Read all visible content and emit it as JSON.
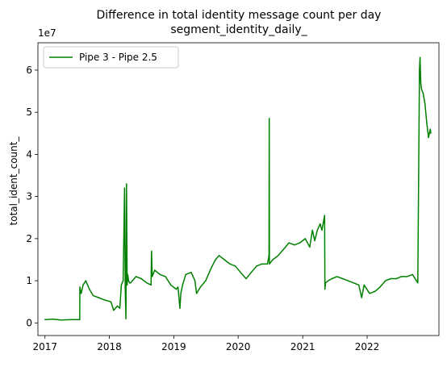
{
  "chart_data": {
    "type": "line",
    "title": "Difference in total identity message count per day",
    "subtitle": "segment_identity_daily_",
    "xlabel": "",
    "ylabel": "total_ident_count_",
    "y_offset_label": "1e7",
    "xlim": [
      "2016-11-22",
      "2023-02-12"
    ],
    "ylim": [
      -3000000,
      66500000
    ],
    "x_ticks": [
      {
        "date": "2017-01-01",
        "label": "2017"
      },
      {
        "date": "2018-01-01",
        "label": "2018"
      },
      {
        "date": "2019-01-01",
        "label": "2019"
      },
      {
        "date": "2020-01-01",
        "label": "2020"
      },
      {
        "date": "2021-01-01",
        "label": "2021"
      },
      {
        "date": "2022-01-01",
        "label": "2022"
      }
    ],
    "y_ticks": [
      {
        "value": 0,
        "label": "0"
      },
      {
        "value": 10000000,
        "label": "1"
      },
      {
        "value": 20000000,
        "label": "2"
      },
      {
        "value": 30000000,
        "label": "3"
      },
      {
        "value": 40000000,
        "label": "4"
      },
      {
        "value": 50000000,
        "label": "5"
      },
      {
        "value": 60000000,
        "label": "6"
      }
    ],
    "grid": false,
    "legend_position": "top-left",
    "series": [
      {
        "name": "Pipe 3 - Pipe 2.5",
        "color": "#008000",
        "x": [
          "2017-01-01",
          "2017-02-15",
          "2017-04-01",
          "2017-06-01",
          "2017-07-17",
          "2017-07-18",
          "2017-07-25",
          "2017-08-05",
          "2017-08-20",
          "2017-09-10",
          "2017-10-01",
          "2017-11-01",
          "2017-12-01",
          "2018-01-10",
          "2018-01-25",
          "2018-02-15",
          "2018-03-01",
          "2018-03-10",
          "2018-03-20",
          "2018-03-28",
          "2018-04-01",
          "2018-04-05",
          "2018-04-08",
          "2018-04-12",
          "2018-04-15",
          "2018-04-20",
          "2018-04-25",
          "2018-05-01",
          "2018-06-01",
          "2018-07-01",
          "2018-08-01",
          "2018-08-25",
          "2018-08-28",
          "2018-09-01",
          "2018-09-15",
          "2018-10-15",
          "2018-11-15",
          "2018-12-15",
          "2019-01-15",
          "2019-01-25",
          "2019-02-05",
          "2019-02-10",
          "2019-02-20",
          "2019-03-10",
          "2019-04-10",
          "2019-05-01",
          "2019-05-10",
          "2019-06-01",
          "2019-07-01",
          "2019-08-01",
          "2019-08-25",
          "2019-09-15",
          "2019-10-15",
          "2019-11-15",
          "2019-12-15",
          "2020-01-15",
          "2020-02-15",
          "2020-03-15",
          "2020-04-15",
          "2020-05-15",
          "2020-06-15",
          "2020-06-24",
          "2020-06-25",
          "2020-06-26",
          "2020-07-15",
          "2020-08-15",
          "2020-09-15",
          "2020-10-15",
          "2020-11-15",
          "2020-12-15",
          "2021-01-15",
          "2021-02-10",
          "2021-02-25",
          "2021-03-10",
          "2021-03-25",
          "2021-04-10",
          "2021-04-20",
          "2021-05-05",
          "2021-05-07",
          "2021-05-10",
          "2021-05-25",
          "2021-06-15",
          "2021-07-15",
          "2021-08-15",
          "2021-09-15",
          "2021-10-15",
          "2021-11-15",
          "2021-12-01",
          "2021-12-15",
          "2022-01-15",
          "2022-02-15",
          "2022-03-15",
          "2022-04-15",
          "2022-05-15",
          "2022-06-15",
          "2022-07-15",
          "2022-08-15",
          "2022-09-15",
          "2022-10-15",
          "2022-10-25",
          "2022-10-28",
          "2022-11-01",
          "2022-11-05",
          "2022-11-15",
          "2022-11-25",
          "2022-12-05",
          "2022-12-15",
          "2022-12-25",
          "2022-12-28"
        ],
        "values": [
          800000,
          900000,
          700000,
          800000,
          800000,
          8500000,
          7000000,
          9000000,
          10000000,
          8000000,
          6500000,
          6000000,
          5500000,
          5000000,
          3000000,
          4000000,
          3500000,
          9000000,
          10000000,
          32000000,
          8000000,
          1000000,
          33000000,
          9000000,
          11500000,
          10000000,
          9500000,
          9500000,
          11000000,
          10500000,
          9500000,
          9000000,
          17000000,
          11000000,
          12500000,
          11500000,
          11000000,
          9000000,
          8000000,
          8500000,
          3500000,
          7000000,
          9000000,
          11500000,
          12000000,
          10000000,
          7000000,
          8500000,
          10000000,
          13000000,
          15000000,
          16000000,
          15000000,
          14000000,
          13500000,
          12000000,
          10500000,
          12000000,
          13500000,
          14000000,
          14000000,
          16000000,
          48500000,
          14000000,
          15000000,
          16000000,
          17500000,
          19000000,
          18500000,
          19000000,
          20000000,
          18000000,
          22000000,
          19500000,
          22000000,
          23500000,
          22000000,
          25500000,
          8000000,
          9500000,
          10000000,
          10500000,
          11000000,
          10500000,
          10000000,
          9500000,
          9000000,
          6000000,
          9000000,
          7000000,
          7500000,
          8500000,
          10000000,
          10500000,
          10500000,
          11000000,
          11000000,
          11500000,
          9500000,
          60000000,
          63000000,
          57000000,
          55500000,
          54500000,
          52000000,
          47500000,
          44000000,
          46000000,
          45000000
        ]
      }
    ]
  }
}
